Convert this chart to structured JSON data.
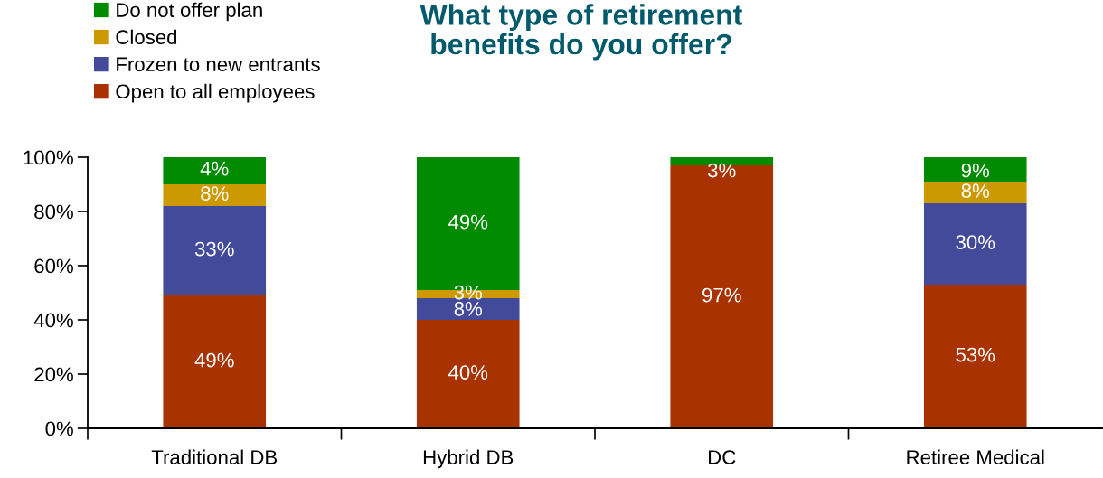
{
  "chart_data": {
    "type": "bar",
    "title": "What type of retirement\nbenefits do you offer?",
    "categories": [
      "Traditional DB",
      "Hybrid DB",
      "DC",
      "Retiree Medical"
    ],
    "series": [
      {
        "name": "Open to all employees",
        "color": "#a83200",
        "values": [
          49,
          40,
          97,
          53
        ],
        "value_labels": [
          "49%",
          "40%",
          "97%",
          "53%"
        ]
      },
      {
        "name": "Frozen to new entrants",
        "color": "#434a9a",
        "values": [
          33,
          8,
          null,
          30
        ],
        "value_labels": [
          "33%",
          "8%",
          null,
          "30%"
        ]
      },
      {
        "name": "Closed",
        "color": "#cc9900",
        "values": [
          8,
          3,
          null,
          8
        ],
        "value_labels": [
          "8%",
          "3%",
          null,
          "8%"
        ]
      },
      {
        "name": "Do not offer plan",
        "color": "#008a00",
        "values": [
          10,
          49,
          3,
          9
        ],
        "value_labels": [
          null,
          "49%",
          "3%",
          "9%"
        ]
      }
    ],
    "annotations": [
      {
        "text": "4%",
        "x": "Traditional DB",
        "y": 100
      }
    ],
    "stacked": true,
    "ylim": [
      0,
      100
    ],
    "yticks": [
      {
        "value": 0,
        "label": "0%"
      },
      {
        "value": 20,
        "label": "20%"
      },
      {
        "value": 40,
        "label": "40%"
      },
      {
        "value": 60,
        "label": "60%"
      },
      {
        "value": 80,
        "label": "80%"
      },
      {
        "value": 100,
        "label": "100%"
      }
    ],
    "legend": "top left",
    "grid": false
  }
}
